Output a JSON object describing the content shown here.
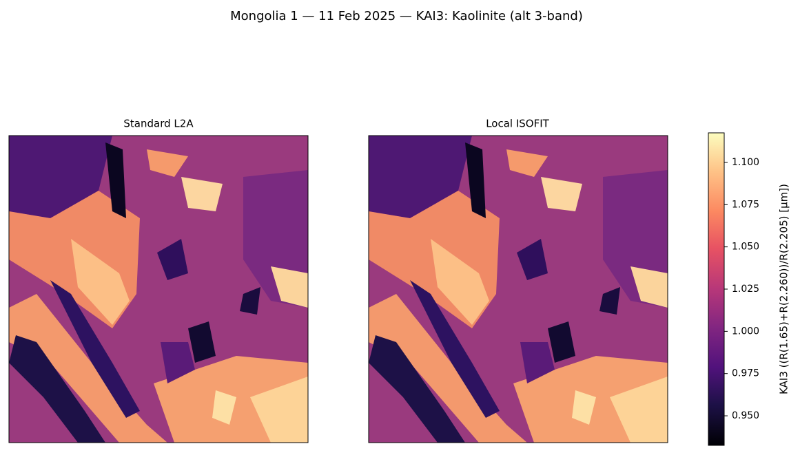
{
  "chart_data": {
    "type": "image",
    "title": "Mongolia 1 — 11 Feb 2025 — KAI3: Kaolinite (alt 3-band)",
    "panels": [
      {
        "title": "Standard L2A"
      },
      {
        "title": "Local ISOFIT"
      }
    ],
    "colorbar": {
      "label": "KAI3  ((R(1.65)+R(2.260))/R(2.205)  [µm])",
      "colormap": "magma",
      "lim": [
        0.9325,
        1.1175
      ],
      "ticks": [
        {
          "value": 0.95,
          "label": "0.950"
        },
        0.975,
        {
          "value": 1,
          "label": "1.000"
        },
        1.025,
        {
          "value": 1.05,
          "label": "1.050"
        },
        1.075,
        {
          "value": 1.1,
          "label": "1.100"
        }
      ]
    }
  }
}
